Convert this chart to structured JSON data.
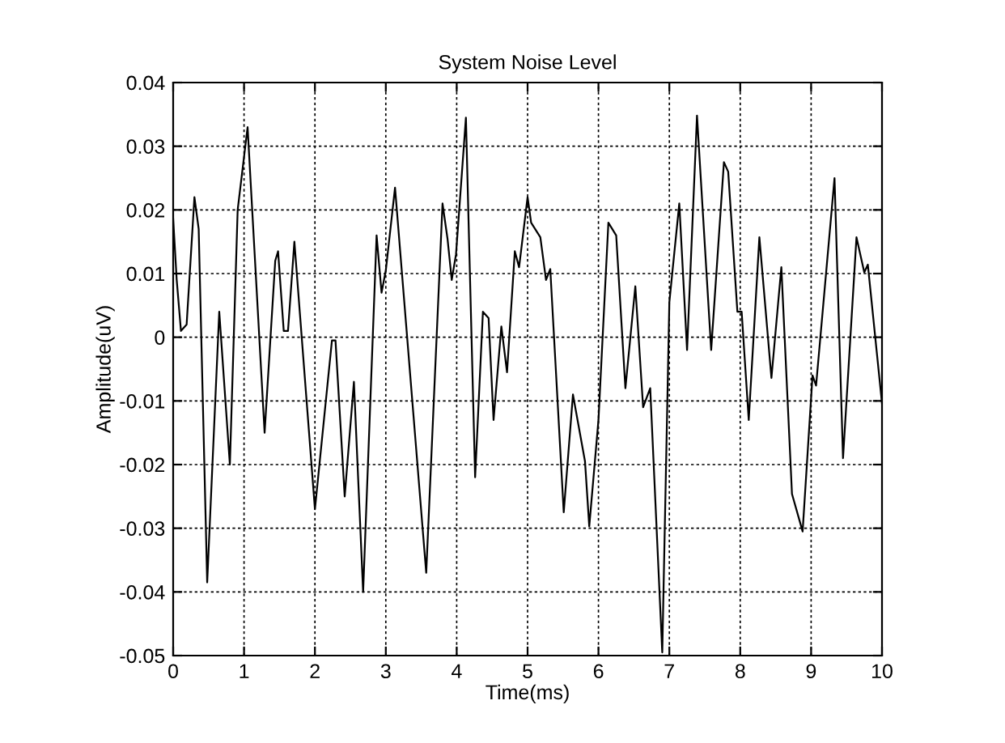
{
  "chart_data": {
    "type": "line",
    "title": "System Noise Level",
    "xlabel": "Time(ms)",
    "ylabel": "Amplitude(uV)",
    "x": [
      0,
      0.05,
      0.11,
      0.19,
      0.3,
      0.36,
      0.48,
      0.65,
      0.8,
      0.91,
      1.05,
      1.29,
      1.44,
      1.48,
      1.56,
      1.62,
      1.71,
      2.0,
      2.24,
      2.29,
      2.42,
      2.55,
      2.68,
      2.87,
      2.94,
      3.0,
      3.13,
      3.57,
      3.8,
      3.87,
      3.93,
      3.99,
      4.13,
      4.26,
      4.37,
      4.45,
      4.52,
      4.63,
      4.71,
      4.82,
      4.88,
      5.0,
      5.05,
      5.18,
      5.26,
      5.32,
      5.51,
      5.64,
      5.81,
      5.87,
      6.0,
      6.14,
      6.25,
      6.38,
      6.52,
      6.63,
      6.73,
      6.9,
      7.0,
      7.14,
      7.25,
      7.39,
      7.59,
      7.77,
      7.83,
      7.96,
      8.02,
      8.12,
      8.27,
      8.44,
      8.58,
      8.73,
      8.88,
      9.02,
      9.07,
      9.33,
      9.45,
      9.64,
      9.75,
      9.8,
      10.0
    ],
    "series": [
      {
        "color": "#000000",
        "values": [
          0.0186,
          0.009,
          0.001,
          0.002,
          0.022,
          0.017,
          -0.0385,
          0.004,
          -0.02,
          0.02,
          0.033,
          -0.015,
          0.012,
          0.0135,
          0.001,
          0.001,
          0.015,
          -0.027,
          -0.0005,
          -0.0005,
          -0.025,
          -0.007,
          -0.04,
          0.016,
          0.007,
          0.0105,
          0.0235,
          -0.037,
          0.021,
          0.0155,
          0.009,
          0.013,
          0.0345,
          -0.022,
          0.004,
          0.003,
          -0.013,
          0.0017,
          -0.0055,
          0.0135,
          0.011,
          0.022,
          0.018,
          0.0157,
          0.009,
          0.0107,
          -0.0275,
          -0.009,
          -0.0195,
          -0.0297,
          -0.013,
          0.018,
          0.016,
          -0.008,
          0.008,
          -0.011,
          -0.008,
          -0.0495,
          0.0055,
          0.021,
          -0.002,
          0.0348,
          -0.002,
          0.0275,
          0.026,
          0.004,
          0.004,
          -0.013,
          0.0157,
          -0.0064,
          0.011,
          -0.0246,
          -0.0305,
          -0.006,
          -0.0076,
          0.025,
          -0.019,
          0.0157,
          0.0102,
          0.0114,
          -0.0104
        ]
      }
    ],
    "xlim": [
      0,
      10
    ],
    "ylim": [
      -0.05,
      0.04
    ],
    "xticks": [
      0,
      1,
      2,
      3,
      4,
      5,
      6,
      7,
      8,
      9,
      10
    ],
    "yticks": [
      -0.05,
      -0.04,
      -0.03,
      -0.02,
      -0.01,
      0,
      0.01,
      0.02,
      0.03,
      0.04
    ],
    "grid": true,
    "line_style": "solid"
  }
}
